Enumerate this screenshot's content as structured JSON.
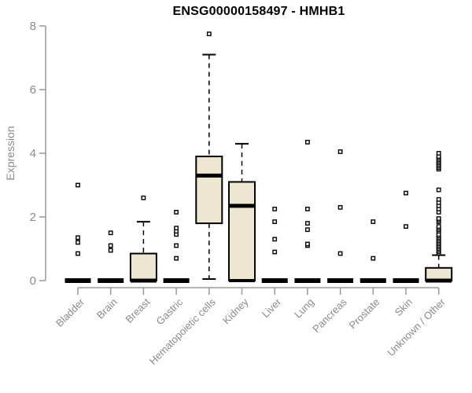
{
  "chart_data": {
    "type": "boxplot",
    "title": "ENSG00000158497 - HMHB1",
    "ylabel": "Expression",
    "xlabel": "",
    "ylim": [
      0,
      8
    ],
    "yticks": [
      0,
      2,
      4,
      6,
      8
    ],
    "grid": false,
    "legend": null,
    "colors": {
      "box_fill": "#ede7d2",
      "box_stroke": "#000000",
      "axis_line": "#999999",
      "text_gray": "#8a8a8a",
      "title_color": "#000000"
    },
    "categories": [
      "Bladder",
      "Brain",
      "Breast",
      "Gastric",
      "Hematopoietic cells",
      "Kidney",
      "Liver",
      "Lung",
      "Pancreas",
      "Prostate",
      "Skin",
      "Unknown / Other"
    ],
    "series": [
      {
        "label": "Bladder",
        "q1": 0,
        "median": 0,
        "q3": 0,
        "whisker_low": 0,
        "whisker_high": 0,
        "outliers": [
          0.85,
          1.2,
          1.35,
          3.0
        ]
      },
      {
        "label": "Brain",
        "q1": 0,
        "median": 0,
        "q3": 0,
        "whisker_low": 0,
        "whisker_high": 0,
        "outliers": [
          0.95,
          1.1,
          1.5
        ]
      },
      {
        "label": "Breast",
        "q1": 0,
        "median": 0,
        "q3": 0.85,
        "whisker_low": 0,
        "whisker_high": 1.85,
        "outliers": [
          2.6
        ]
      },
      {
        "label": "Gastric",
        "q1": 0,
        "median": 0,
        "q3": 0,
        "whisker_low": 0,
        "whisker_high": 0,
        "outliers": [
          0.7,
          1.1,
          1.45,
          1.55,
          1.65,
          2.15
        ]
      },
      {
        "label": "Hematopoietic cells",
        "q1": 1.8,
        "median": 3.3,
        "q3": 3.9,
        "whisker_low": 0.05,
        "whisker_high": 7.1,
        "outliers": [
          7.75
        ]
      },
      {
        "label": "Kidney",
        "q1": 0,
        "median": 2.35,
        "q3": 3.1,
        "whisker_low": 0,
        "whisker_high": 4.3,
        "outliers": []
      },
      {
        "label": "Liver",
        "q1": 0,
        "median": 0,
        "q3": 0,
        "whisker_low": 0,
        "whisker_high": 0,
        "outliers": [
          0.9,
          1.3,
          1.85,
          2.25
        ]
      },
      {
        "label": "Lung",
        "q1": 0,
        "median": 0,
        "q3": 0,
        "whisker_low": 0,
        "whisker_high": 0,
        "outliers": [
          1.1,
          1.15,
          1.6,
          1.8,
          2.25,
          4.35
        ]
      },
      {
        "label": "Pancreas",
        "q1": 0,
        "median": 0,
        "q3": 0,
        "whisker_low": 0,
        "whisker_high": 0,
        "outliers": [
          0.85,
          2.3,
          4.05
        ]
      },
      {
        "label": "Prostate",
        "q1": 0,
        "median": 0,
        "q3": 0,
        "whisker_low": 0,
        "whisker_high": 0,
        "outliers": [
          0.7,
          1.85
        ]
      },
      {
        "label": "Skin",
        "q1": 0,
        "median": 0,
        "q3": 0,
        "whisker_low": 0,
        "whisker_high": 0,
        "outliers": [
          1.7,
          2.75
        ]
      },
      {
        "label": "Unknown / Other",
        "q1": 0,
        "median": 0,
        "q3": 0.4,
        "whisker_low": 0,
        "whisker_high": 0.8,
        "outliers": [
          0.85,
          0.9,
          0.95,
          1.0,
          1.05,
          1.1,
          1.15,
          1.2,
          1.25,
          1.3,
          1.35,
          1.4,
          1.45,
          1.55,
          1.6,
          1.65,
          1.7,
          1.85,
          1.9,
          1.95,
          2.15,
          2.25,
          2.35,
          2.45,
          2.55,
          2.85,
          3.5,
          3.55,
          3.6,
          3.65,
          3.7,
          3.75,
          3.8,
          3.85,
          3.9,
          4.0
        ]
      }
    ]
  }
}
